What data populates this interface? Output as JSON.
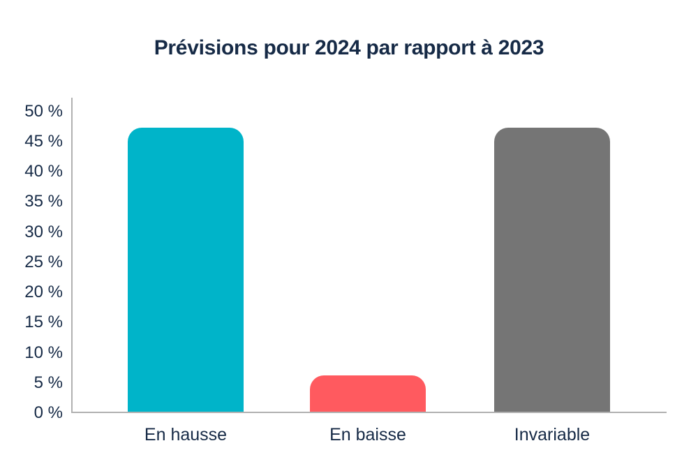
{
  "chart_data": {
    "type": "bar",
    "title": "Prévisions pour 2024 par rapport à 2023",
    "categories": [
      "En hausse",
      "En baisse",
      "Invariable"
    ],
    "values": [
      47,
      6,
      47
    ],
    "value_unit": "%",
    "bar_colors": [
      "#00b4c9",
      "#ff5a5f",
      "#757575"
    ],
    "xlabel": "",
    "ylabel": "",
    "ylim": [
      0,
      50
    ],
    "ytick_step": 5,
    "ytick_values": [
      0,
      5,
      10,
      15,
      20,
      25,
      30,
      35,
      40,
      45,
      50
    ],
    "ytick_labels": [
      "0 %",
      "5 %",
      "10 %",
      "15 %",
      "20 %",
      "25 %",
      "30 %",
      "35 %",
      "40 %",
      "45 %",
      "50 %"
    ],
    "grid": false,
    "legend": false,
    "colors": {
      "axis": "#b0b0b0",
      "text": "#162a46",
      "background": "#ffffff"
    }
  }
}
